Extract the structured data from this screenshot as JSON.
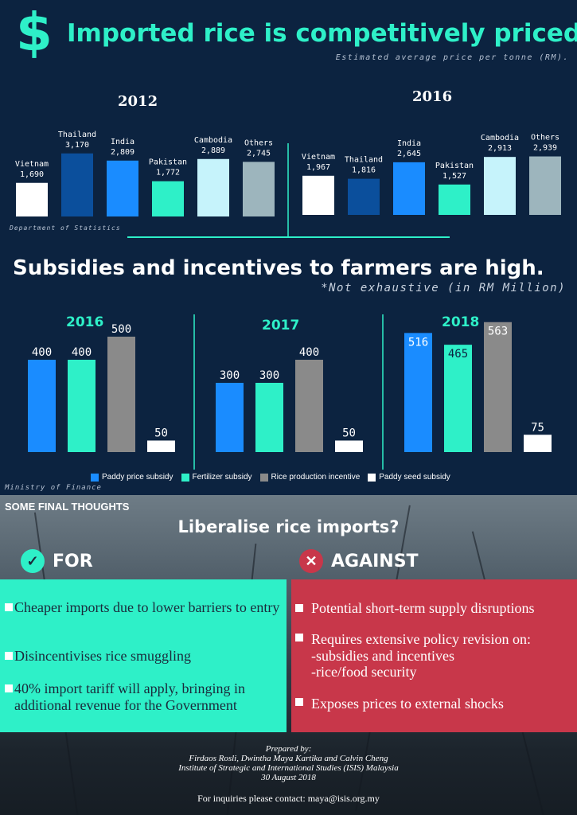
{
  "header": {
    "dollar": "$",
    "title": "Imported rice is competitively priced",
    "subtitle": "Estimated average price per tonne (RM).",
    "source": "Department of Statistics"
  },
  "chart_data": [
    {
      "type": "bar",
      "title": "2012",
      "categories": [
        "Vietnam",
        "Thailand",
        "India",
        "Pakistan",
        "Cambodia",
        "Others"
      ],
      "values": [
        1690,
        3170,
        2809,
        1772,
        2889,
        2745
      ],
      "value_labels": [
        "1,690",
        "3,170",
        "2,809",
        "1,772",
        "2,889",
        "2,745"
      ],
      "colors": [
        "#ffffff",
        "#0b4f9c",
        "#1a8cff",
        "#2ef0c8",
        "#c6f3fb",
        "#9db5bd"
      ]
    },
    {
      "type": "bar",
      "title": "2016",
      "categories": [
        "Vietnam",
        "Thailand",
        "India",
        "Pakistan",
        "Cambodia",
        "Others"
      ],
      "values": [
        1967,
        1816,
        2645,
        1527,
        2913,
        2939
      ],
      "value_labels": [
        "1,967",
        "1,816",
        "2,645",
        "1,527",
        "2,913",
        "2,939"
      ],
      "colors": [
        "#ffffff",
        "#0b4f9c",
        "#1a8cff",
        "#2ef0c8",
        "#c6f3fb",
        "#9db5bd"
      ]
    },
    {
      "type": "bar",
      "title": "2016",
      "series": [
        {
          "name": "Paddy price subsidy",
          "values": [
            400
          ]
        },
        {
          "name": "Fertilizer subsidy",
          "values": [
            400
          ]
        },
        {
          "name": "Rice production incentive",
          "values": [
            500
          ]
        },
        {
          "name": "Paddy seed subsidy",
          "values": [
            50
          ]
        }
      ]
    },
    {
      "type": "bar",
      "title": "2017",
      "series": [
        {
          "name": "Paddy price subsidy",
          "values": [
            300
          ]
        },
        {
          "name": "Fertilizer subsidy",
          "values": [
            300
          ]
        },
        {
          "name": "Rice production incentive",
          "values": [
            400
          ]
        },
        {
          "name": "Paddy seed subsidy",
          "values": [
            50
          ]
        }
      ]
    },
    {
      "type": "bar",
      "title": "2018",
      "series": [
        {
          "name": "Paddy price subsidy",
          "values": [
            516
          ]
        },
        {
          "name": "Fertilizer subsidy",
          "values": [
            465
          ]
        },
        {
          "name": "Rice production incentive",
          "values": [
            563
          ]
        },
        {
          "name": "Paddy seed subsidy",
          "values": [
            75
          ]
        }
      ]
    }
  ],
  "subsidies": {
    "title": "Subsidies and incentives to farmers are high.",
    "note": "*Not exhaustive (in RM Million)",
    "source": "Ministry of Finance",
    "legend": [
      {
        "label": "Paddy price subsidy",
        "color": "#1a8cff"
      },
      {
        "label": "Fertilizer subsidy",
        "color": "#2ef0c8"
      },
      {
        "label": "Rice production incentive",
        "color": "#8a8a8a"
      },
      {
        "label": "Paddy seed subsidy",
        "color": "#ffffff"
      }
    ]
  },
  "thoughts": {
    "label": "SOME FINAL THOUGHTS",
    "question": "Liberalise rice imports?",
    "for": {
      "heading": "FOR",
      "icon": "check-icon",
      "points": [
        "Cheaper imports due to lower barriers to entry",
        "Disincentivises rice smuggling",
        "40% import tariff will apply, bringing in additional revenue for the Government"
      ]
    },
    "against": {
      "heading": "AGAINST",
      "icon": "cross-icon",
      "points": [
        "Potential short-term supply disruptions",
        "Requires extensive policy revision on:",
        "-subsidies and incentives",
        "-rice/food security",
        "Exposes prices to external shocks"
      ]
    }
  },
  "footer": {
    "prepared": "Prepared by:",
    "authors": "Firdaos Rosli, Dwintha Maya Kartika and Calvin Cheng",
    "institute": "Institute of Strategic and International Studies (ISIS) Malaysia",
    "date": "30 August 2018",
    "contact": "For inquiries please contact: maya@isis.org.my"
  }
}
